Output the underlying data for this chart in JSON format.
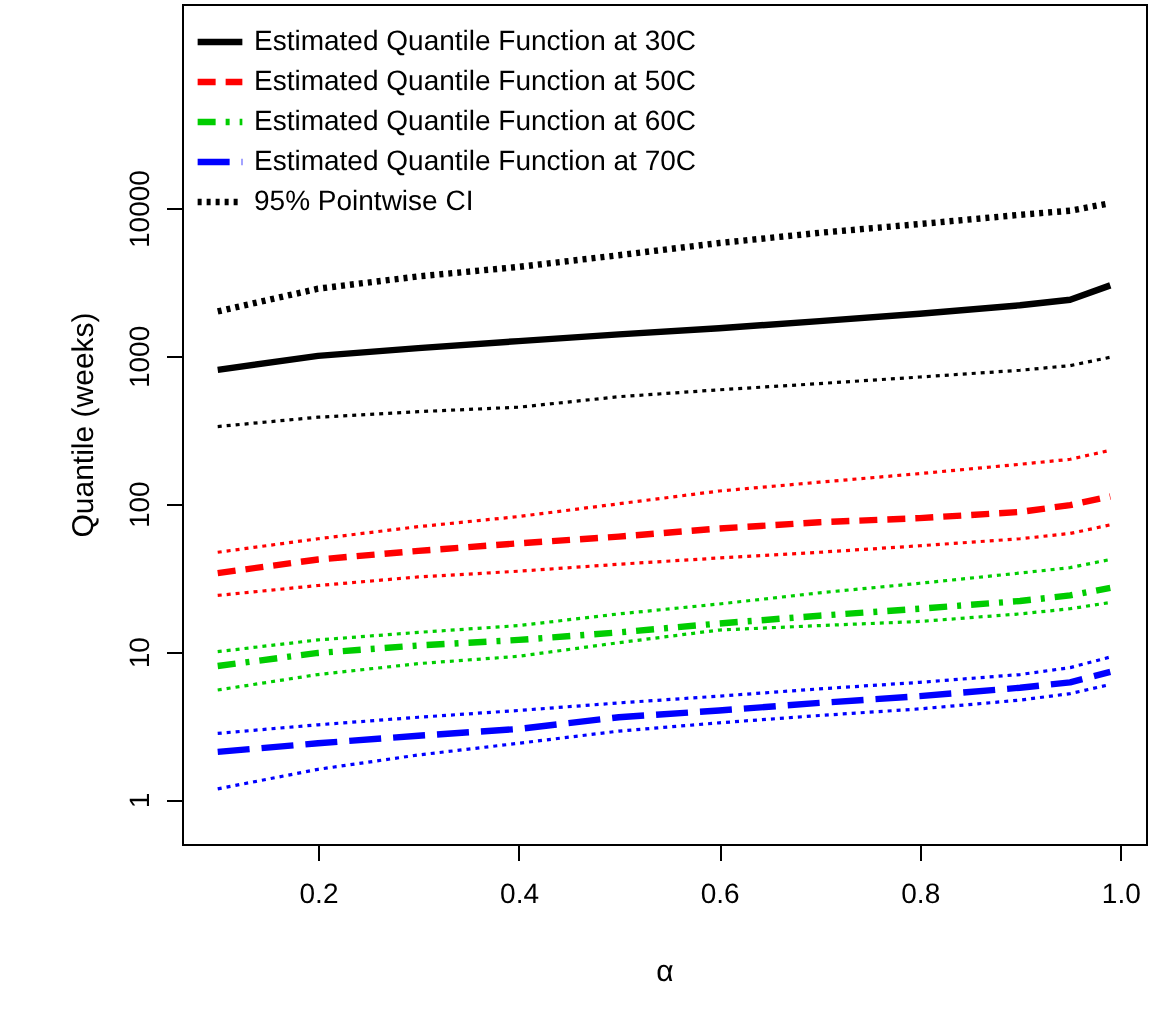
{
  "chart_data": {
    "type": "line",
    "xlabel": "α",
    "ylabel": "Quantile (weeks)",
    "x": [
      0.1,
      0.2,
      0.3,
      0.4,
      0.5,
      0.6,
      0.7,
      0.8,
      0.9,
      0.95,
      0.99
    ],
    "xlim": [
      0.0644,
      1.0256
    ],
    "xticks": [
      0.2,
      0.4,
      0.6,
      0.8,
      {
        "value": 1.0,
        "label": "1.0"
      }
    ],
    "log": "y",
    "ylim": [
      0.5,
      240000
    ],
    "yticks": [
      1,
      10,
      100,
      1000,
      10000
    ],
    "grid": false,
    "legend": "top left",
    "marker": "none",
    "series": [
      {
        "name": "Estimated Quantile Function at 30C",
        "color": "#000000",
        "line_style": "solid",
        "values": [
          805,
          1000,
          1130,
          1260,
          1400,
          1540,
          1720,
          1930,
          2200,
          2400,
          3000
        ]
      },
      {
        "name": "Estimated Quantile Function at 50C",
        "color": "#ff0000",
        "line_style": "dashed",
        "values": [
          34,
          42,
          48,
          54,
          60,
          68,
          75,
          80,
          88,
          98,
          112
        ]
      },
      {
        "name": "Estimated Quantile Function at 60C",
        "color": "#00cd00",
        "line_style": "dashdot",
        "values": [
          8,
          9.8,
          11,
          12,
          13.5,
          15.5,
          17.5,
          19.5,
          22,
          24,
          27
        ]
      },
      {
        "name": "Estimated Quantile Function at 70C",
        "color": "#0000ff",
        "line_style": "longdash",
        "values": [
          2.1,
          2.4,
          2.7,
          3.0,
          3.6,
          4.0,
          4.5,
          5.0,
          5.7,
          6.2,
          7.3
        ]
      },
      {
        "name": "95% Pointwise CI",
        "color": "#000000",
        "line_style": "dotted",
        "values": [
          2000,
          2850,
          3450,
          4000,
          4800,
          5800,
          6800,
          7800,
          9000,
          9600,
          10800
        ]
      },
      {
        "color": "#000000",
        "line_style": "dotted",
        "values": [
          333,
          385,
          420,
          450,
          530,
          590,
          650,
          720,
          800,
          860,
          980
        ]
      },
      {
        "color": "#ff0000",
        "line_style": "dotted",
        "values": [
          47,
          58,
          70,
          82,
          100,
          122,
          140,
          160,
          185,
          200,
          230
        ]
      },
      {
        "color": "#ff0000",
        "line_style": "dotted",
        "values": [
          24,
          28,
          32,
          35,
          39,
          43,
          47,
          52,
          58,
          63,
          72
        ]
      },
      {
        "color": "#00cd00",
        "line_style": "dotted",
        "values": [
          10,
          12,
          13.5,
          15,
          18,
          21,
          25,
          29,
          34,
          37,
          42
        ]
      },
      {
        "color": "#00cd00",
        "line_style": "dotted",
        "values": [
          5.5,
          7,
          8.3,
          9.3,
          11.5,
          14,
          15,
          16,
          18,
          19.5,
          21.5
        ]
      },
      {
        "color": "#0000ff",
        "line_style": "dotted",
        "values": [
          2.8,
          3.2,
          3.6,
          4.0,
          4.5,
          5.0,
          5.6,
          6.2,
          7.0,
          7.8,
          9.2
        ]
      },
      {
        "color": "#0000ff",
        "line_style": "dotted",
        "values": [
          1.18,
          1.6,
          2.0,
          2.4,
          2.9,
          3.3,
          3.7,
          4.1,
          4.7,
          5.2,
          6.0
        ]
      }
    ]
  }
}
